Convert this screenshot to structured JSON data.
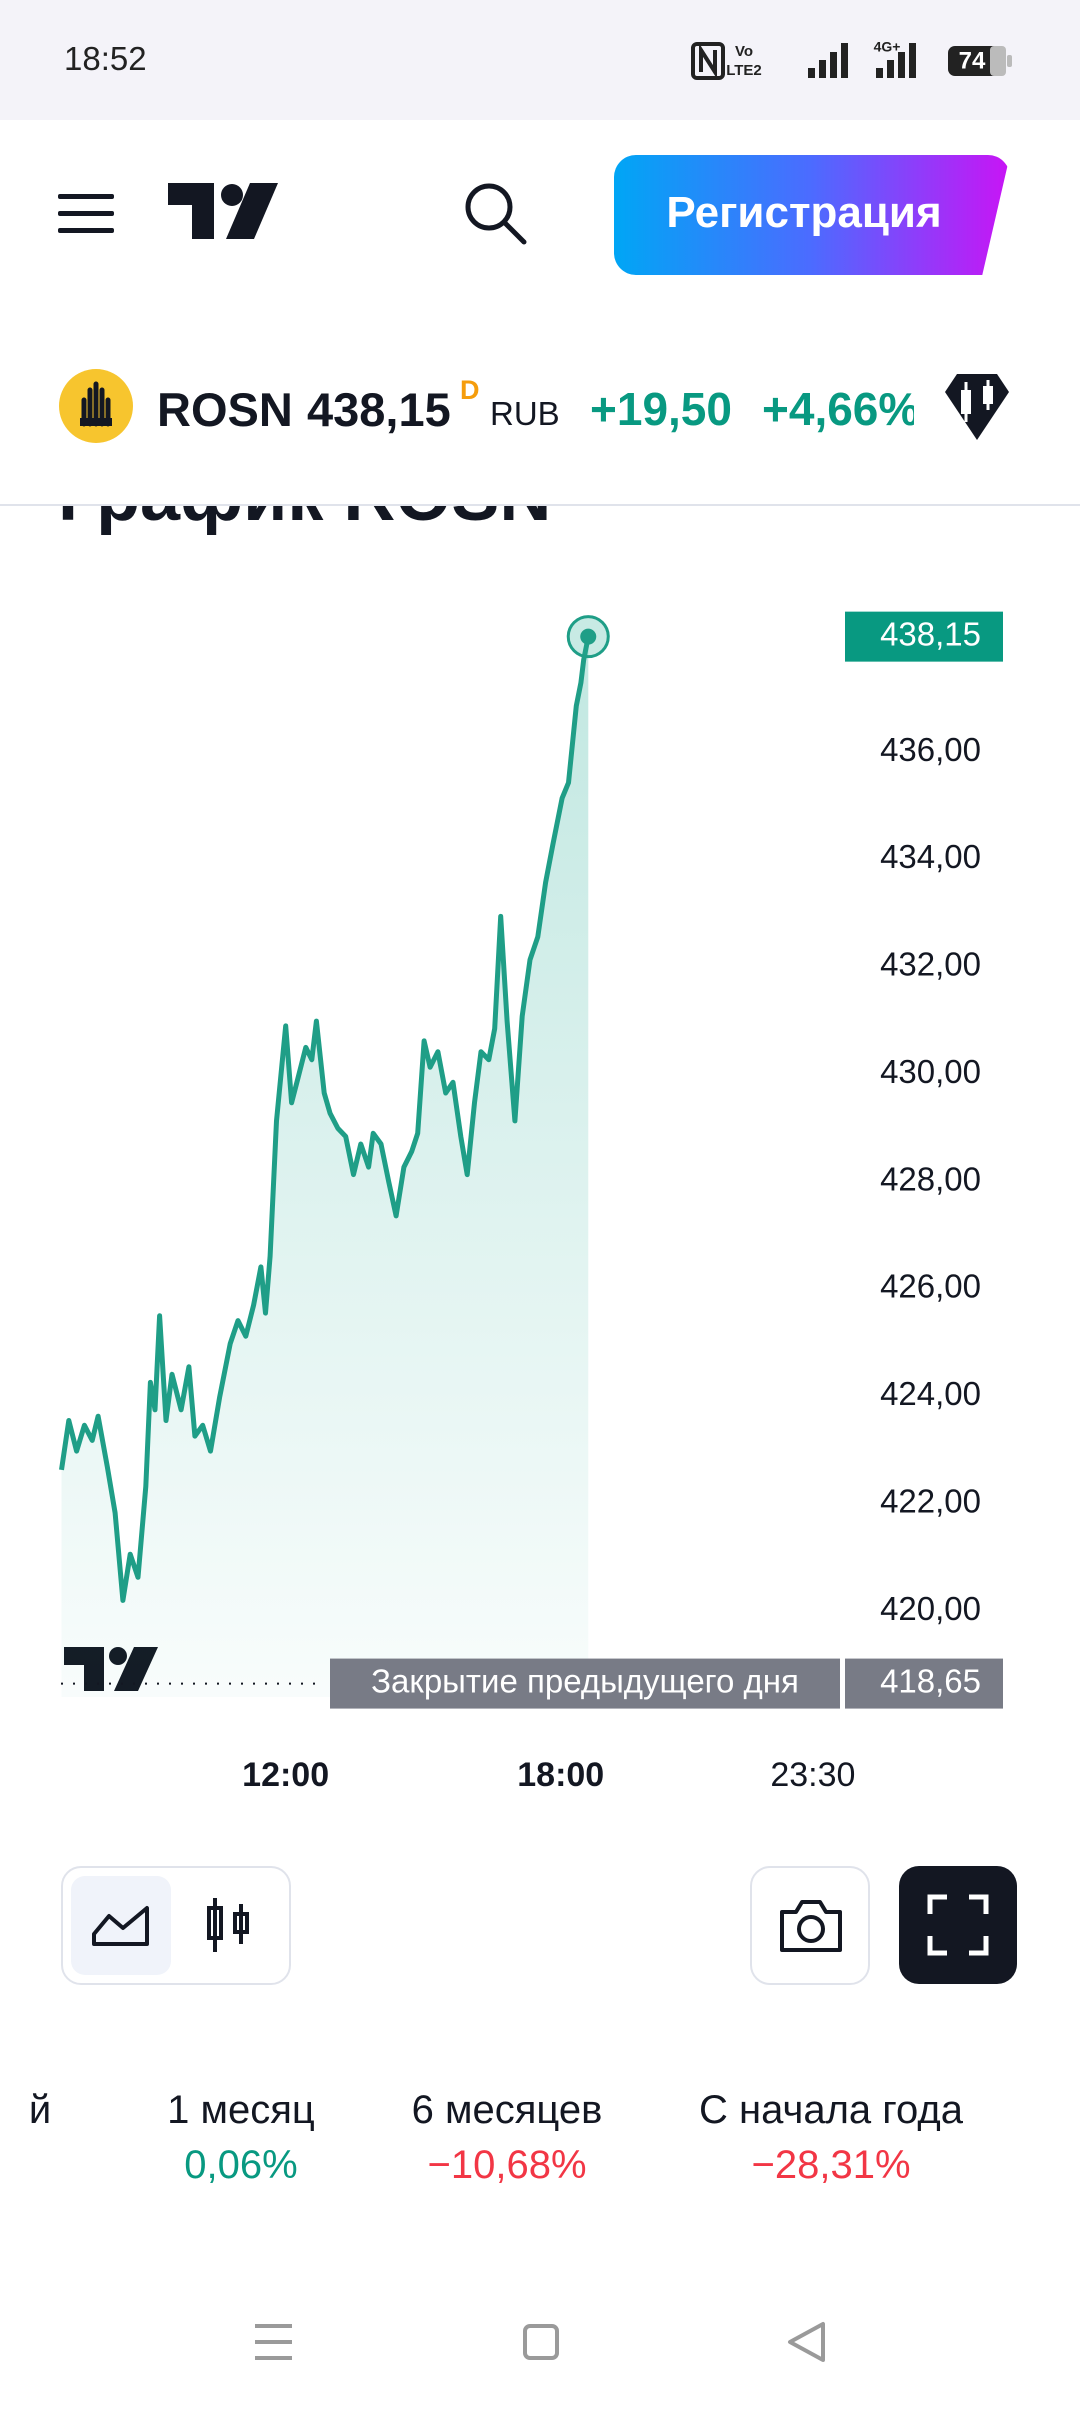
{
  "status_bar": {
    "time": "18:52",
    "indicators": [
      "Vo",
      "LTE2",
      "4G+"
    ],
    "battery": "74"
  },
  "header": {
    "register_button": "Регистрация"
  },
  "ticker": {
    "symbol": "ROSN",
    "price": "438,15",
    "flag": "D",
    "currency": "RUB",
    "change": "+19,50",
    "change_pct": "+4,66%"
  },
  "section_heading": "График ROSN",
  "chart_data": {
    "type": "line",
    "color": "#1f9e87",
    "x": [
      7.11,
      7.27,
      7.44,
      7.61,
      7.78,
      7.91,
      8.11,
      8.28,
      8.45,
      8.61,
      8.78,
      8.95,
      9.05,
      9.15,
      9.25,
      9.39,
      9.52,
      9.72,
      9.89,
      10.02,
      10.19,
      10.36,
      10.56,
      10.79,
      10.96,
      11.13,
      11.3,
      11.46,
      11.56,
      11.66,
      11.8,
      12,
      12.13,
      12.27,
      12.44,
      12.57,
      12.67,
      12.84,
      12.97,
      13.14,
      13.31,
      13.48,
      13.64,
      13.81,
      13.91,
      14.08,
      14.25,
      14.41,
      14.58,
      14.75,
      14.88,
      15.02,
      15.15,
      15.32,
      15.49,
      15.65,
      15.82,
      15.96,
      16.12,
      16.26,
      16.43,
      16.56,
      16.69,
      16.83,
      17,
      17.16,
      17.33,
      17.5,
      17.67,
      17.83,
      18.03,
      18.17,
      18.34,
      18.44,
      18.5,
      18.6
    ],
    "values": [
      422.63,
      423.55,
      422.98,
      423.46,
      423.18,
      423.63,
      422.69,
      421.83,
      420.2,
      421.06,
      420.63,
      422.32,
      424.26,
      423.75,
      425.5,
      423.55,
      424.41,
      423.75,
      424.55,
      423.26,
      423.46,
      422.98,
      423.98,
      424.98,
      425.41,
      425.12,
      425.7,
      426.41,
      425.55,
      426.61,
      429.13,
      430.9,
      429.47,
      429.93,
      430.5,
      430.27,
      430.99,
      429.65,
      429.27,
      428.99,
      428.84,
      428.13,
      428.7,
      428.27,
      428.9,
      428.7,
      427.99,
      427.36,
      428.27,
      428.56,
      428.9,
      430.62,
      430.13,
      430.42,
      429.65,
      429.85,
      428.84,
      428.13,
      429.47,
      430.42,
      430.27,
      430.85,
      432.94,
      430.99,
      429.13,
      431.08,
      432.13,
      432.56,
      433.57,
      434.28,
      435.14,
      435.43,
      436.86,
      437.29,
      437.72,
      438.15
    ],
    "xlim": [
      7.1,
      24.2
    ],
    "xticks": [
      {
        "value": 12,
        "label": "12:00"
      },
      {
        "value": 18,
        "label": "18:00"
      },
      {
        "value": 23.5,
        "label": "23:30"
      }
    ],
    "ylim": [
      418.4,
      439.0
    ],
    "yticks": [
      {
        "value": 420,
        "label": "420,00"
      },
      {
        "value": 422,
        "label": "422,00"
      },
      {
        "value": 424,
        "label": "424,00"
      },
      {
        "value": 426,
        "label": "426,00"
      },
      {
        "value": 428,
        "label": "428,00"
      },
      {
        "value": 430,
        "label": "430,00"
      },
      {
        "value": 432,
        "label": "432,00"
      },
      {
        "value": 434,
        "label": "434,00"
      },
      {
        "value": 436,
        "label": "436,00"
      }
    ],
    "last_price": {
      "value": 438.15,
      "label": "438,15"
    },
    "previous_close": {
      "value": 418.65,
      "label": "418,65"
    },
    "previous_close_text": "Закрытие предыдущего дня"
  },
  "periods": [
    {
      "label": "й"
    },
    {
      "label": "1 месяц",
      "change": "0,06%"
    },
    {
      "label": "6 месяцев",
      "change": "−10,68%"
    },
    {
      "label": "С начала года",
      "change": "−28,31%"
    }
  ]
}
